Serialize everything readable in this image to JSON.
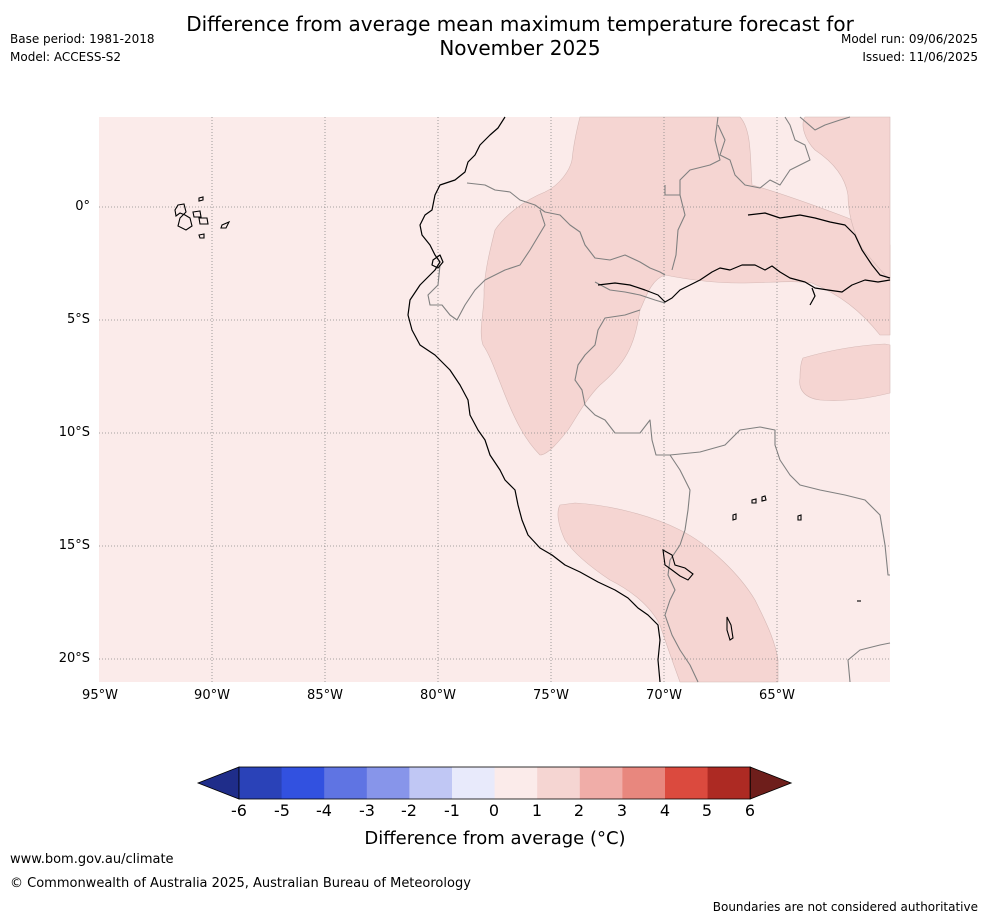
{
  "title": "Difference from average mean maximum temperature forecast for November 2025",
  "title_line1": "Difference from average mean maximum temperature forecast for",
  "title_line2": "November 2025",
  "base_period": "Base period: 1981-2018",
  "model": "Model: ACCESS-S2",
  "model_run": "Model run: 09/06/2025",
  "issued": "Issued: 11/06/2025",
  "lat_labels": [
    "0°",
    "5°S",
    "10°S",
    "15°S",
    "20°S"
  ],
  "lon_labels": [
    "95°W",
    "90°W",
    "85°W",
    "80°W",
    "75°W",
    "70°W",
    "65°W"
  ],
  "colorbar": {
    "ticks": [
      "-6",
      "-5",
      "-4",
      "-3",
      "-2",
      "-1",
      "0",
      "1",
      "2",
      "3",
      "4",
      "5",
      "6"
    ],
    "colors": [
      "#1f2d8a",
      "#2a42b8",
      "#3251e0",
      "#5f74e3",
      "#8795ea",
      "#c0c7f4",
      "#e8eafb",
      "#fbebea",
      "#f5d5d2",
      "#f0ada8",
      "#e8877e",
      "#db4a3e",
      "#ad2a23",
      "#6e1e1b"
    ],
    "label": "Difference from average (°C)",
    "label_main": "Difference from average (",
    "label_unit": "°C)"
  },
  "map": {
    "background_color": "#fbebea",
    "warm_color": "#f5d5d2",
    "coast_color": "#000000",
    "border_color": "#808080",
    "grid_color": "#888888"
  },
  "footer": {
    "url": "www.bom.gov.au/climate",
    "copyright": "© Commonwealth of Australia 2025, Australian Bureau of Meteorology",
    "disclaimer": "Boundaries are not considered authoritative"
  }
}
